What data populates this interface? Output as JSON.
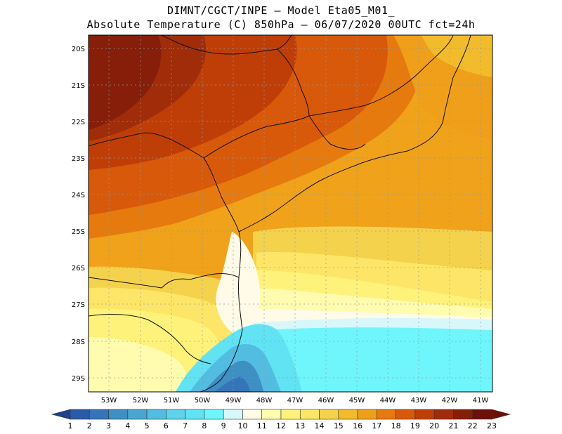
{
  "title_line1": "DIMNT/CGCT/INPE —  Model Eta05_M01_",
  "title_line2": "Absolute Temperature (C) 850hPa —  06/07/2020 00UTC fct=24h",
  "lat_labels": [
    "20S",
    "21S",
    "22S",
    "23S",
    "24S",
    "25S",
    "26S",
    "27S",
    "28S",
    "29S"
  ],
  "lon_labels": [
    "53W",
    "52W",
    "51W",
    "50W",
    "49W",
    "48W",
    "47W",
    "46W",
    "45W",
    "44W",
    "43W",
    "42W",
    "41W"
  ],
  "colorbar": {
    "labels": [
      "1",
      "2",
      "3",
      "4",
      "5",
      "6",
      "7",
      "8",
      "9",
      "10",
      "11",
      "12",
      "13",
      "14",
      "15",
      "16",
      "17",
      "18",
      "19",
      "20",
      "21",
      "22",
      "23"
    ],
    "colors": [
      "#1f3f8f",
      "#2a5ba8",
      "#3574b8",
      "#3d8fc4",
      "#49a6d0",
      "#52bde0",
      "#5ed2ea",
      "#61e3f4",
      "#6ff5fc",
      "#d8f7fa",
      "#fffbe8",
      "#fffcb0",
      "#fff27a",
      "#fde667",
      "#f5d24c",
      "#f2bb2c",
      "#ef9f19",
      "#e67a0e",
      "#d8590a",
      "#bf3e08",
      "#a02c0a",
      "#861e0a",
      "#6e0f0a"
    ]
  }
}
